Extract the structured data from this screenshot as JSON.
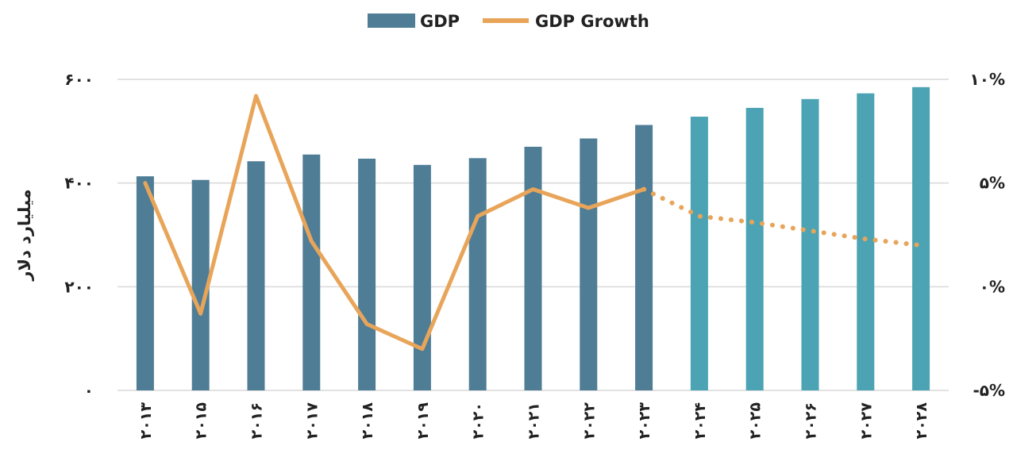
{
  "chart_data": {
    "type": "bar+line",
    "title": "",
    "xlabel": "",
    "ylabel": "میلیارد دلار",
    "ylim": [
      0,
      600
    ],
    "y2lim": [
      -5,
      10
    ],
    "grid": true,
    "legend_position": "top-center",
    "categories": [
      "۲۰۱۳",
      "۲۰۱۵",
      "۲۰۱۶",
      "۲۰۱۷",
      "۲۰۱۸",
      "۲۰۱۹",
      "۲۰۲۰",
      "۲۰۲۱",
      "۲۰۲۲",
      "۲۰۲۳",
      "۲۰۲۴",
      "۲۰۲۵",
      "۲۰۲۶",
      "۲۰۲۷",
      "۲۰۲۸"
    ],
    "y_ticks": [
      "۰",
      "۲۰۰",
      "۴۰۰",
      "۶۰۰"
    ],
    "y2_ticks": [
      "-۵%",
      "۰%",
      "۵%",
      "۱۰%"
    ],
    "series": [
      {
        "name": "GDP",
        "kind": "bar",
        "values": [
          413,
          406,
          442,
          455,
          447,
          435,
          448,
          470,
          486,
          512,
          528,
          545,
          562,
          573,
          585
        ],
        "colors": [
          "#4f7d96",
          "#4f7d96",
          "#4f7d96",
          "#4f7d96",
          "#4f7d96",
          "#4f7d96",
          "#4f7d96",
          "#4f7d96",
          "#4f7d96",
          "#4f7d96",
          "#4ba3b3",
          "#4ba3b3",
          "#4ba3b3",
          "#4ba3b3",
          "#4ba3b3"
        ]
      },
      {
        "name": "GDP Growth",
        "kind": "line",
        "values": [
          5.0,
          -1.3,
          9.2,
          2.2,
          -1.8,
          -3.0,
          3.4,
          4.7,
          3.8,
          4.7,
          3.4,
          3.1,
          2.7,
          2.3,
          2.0
        ],
        "solid_through_index": 9,
        "color": "#e8a55a"
      }
    ]
  }
}
